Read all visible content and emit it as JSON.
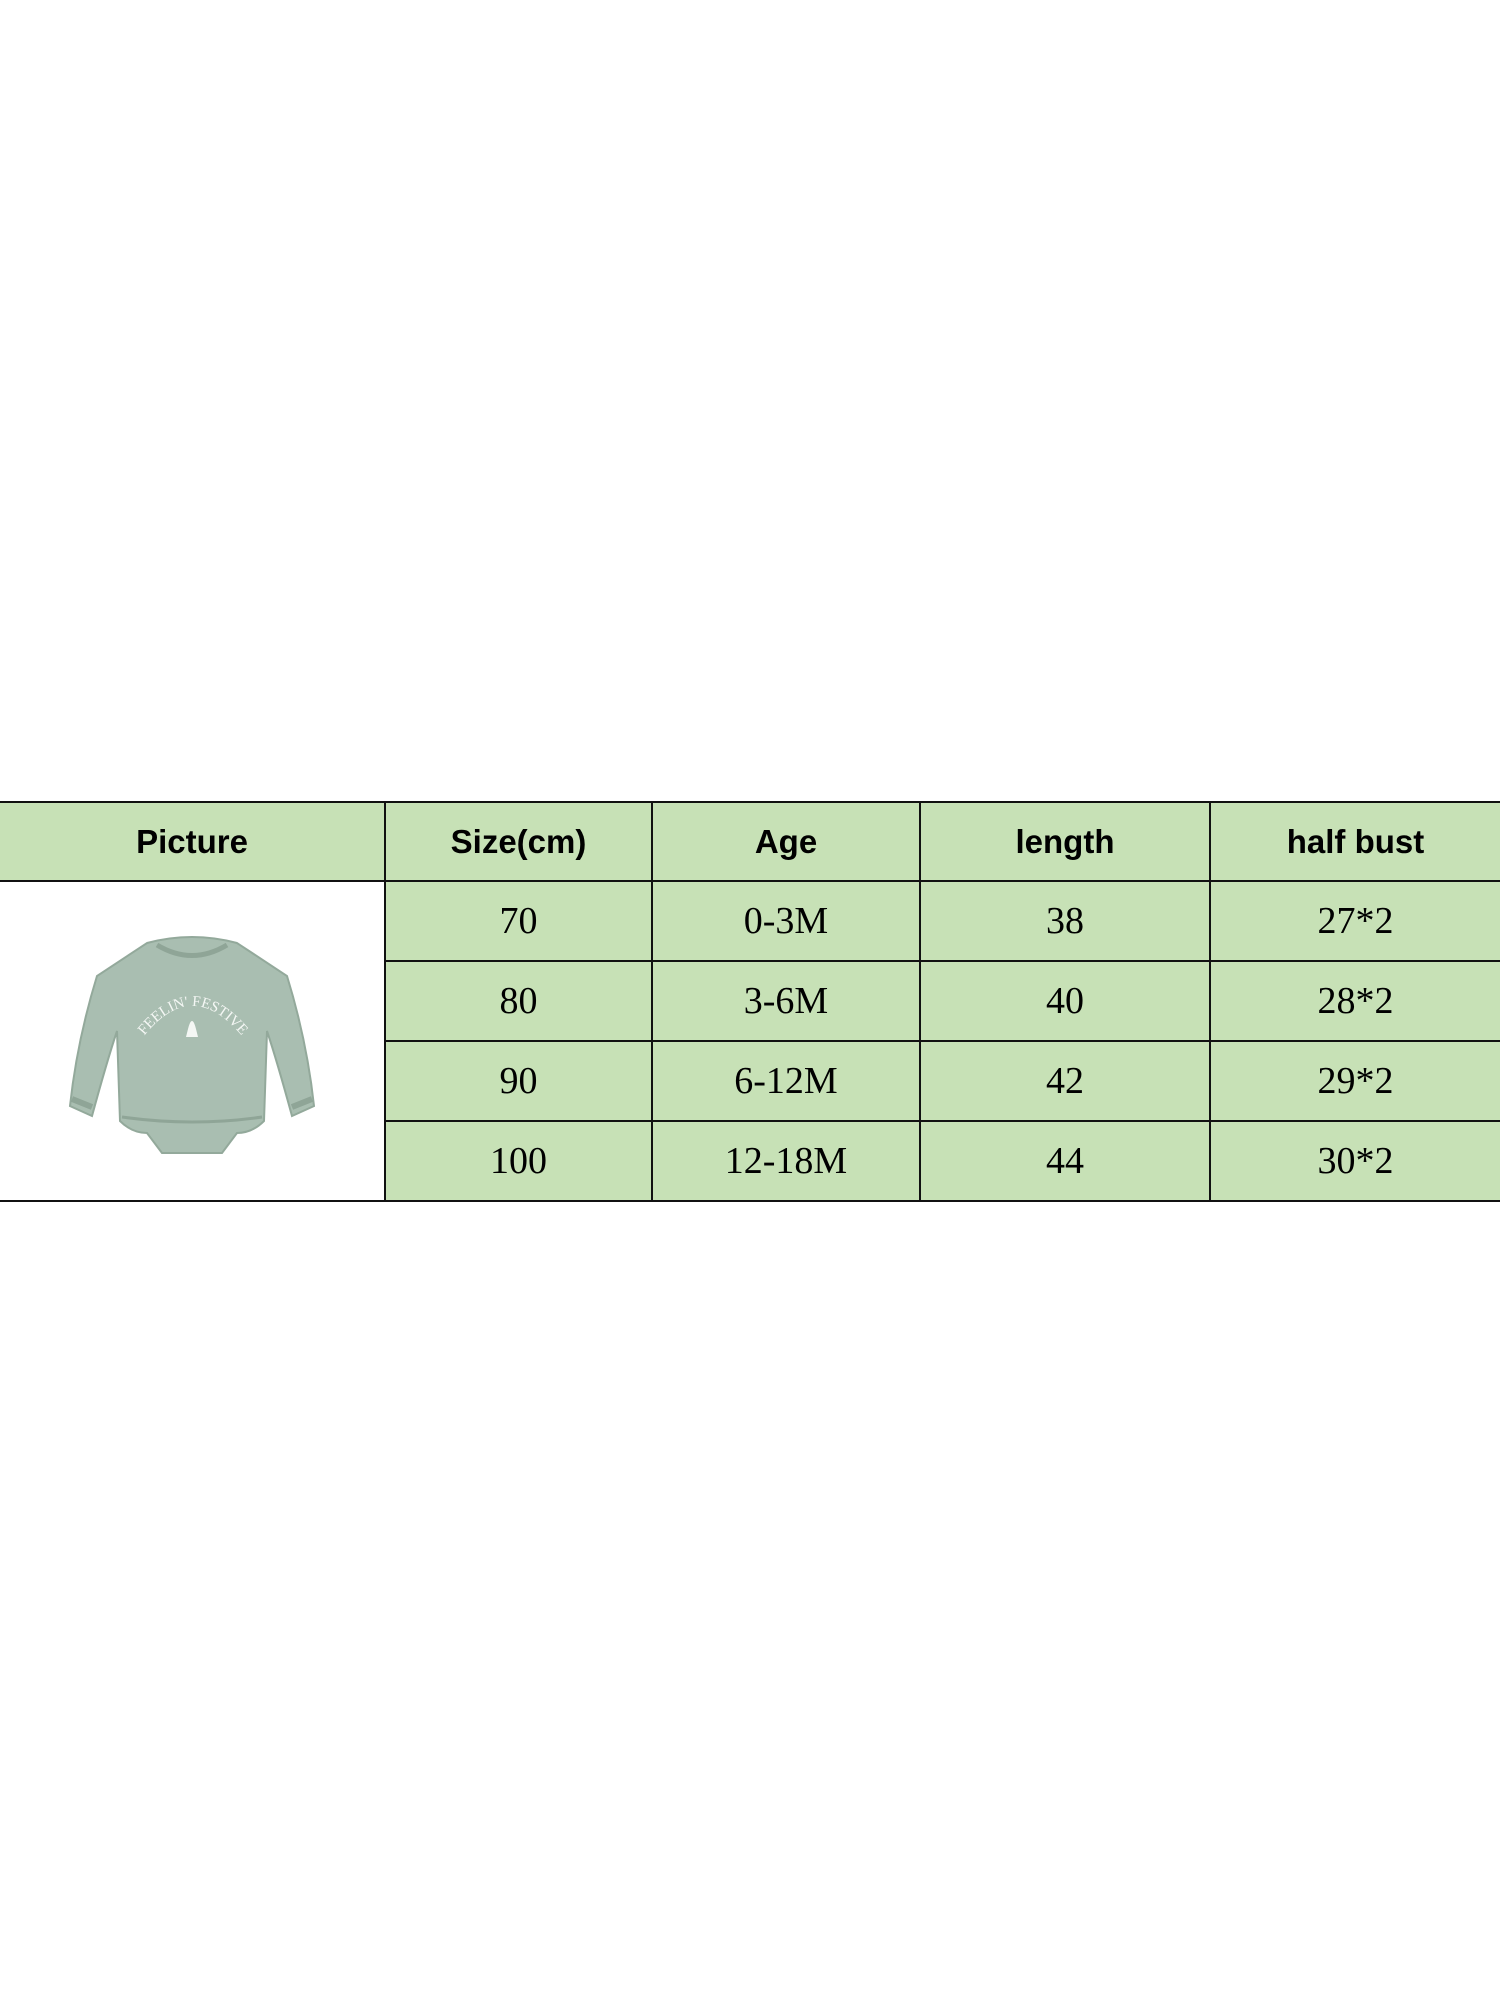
{
  "table": {
    "headers": [
      "Picture",
      "Size(cm)",
      "Age",
      "length",
      "half bust"
    ],
    "rows": [
      [
        "70",
        "0-3M",
        "38",
        "27*2"
      ],
      [
        "80",
        "3-6M",
        "40",
        "28*2"
      ],
      [
        "90",
        "6-12M",
        "42",
        "29*2"
      ],
      [
        "100",
        "12-18M",
        "44",
        "30*2"
      ]
    ],
    "picture": {
      "print_text": "FEELIN' FESTIVE",
      "garment_color": "#a8bdb0"
    },
    "colors": {
      "cell_background": "#c7e1b6",
      "border": "#111111"
    }
  }
}
